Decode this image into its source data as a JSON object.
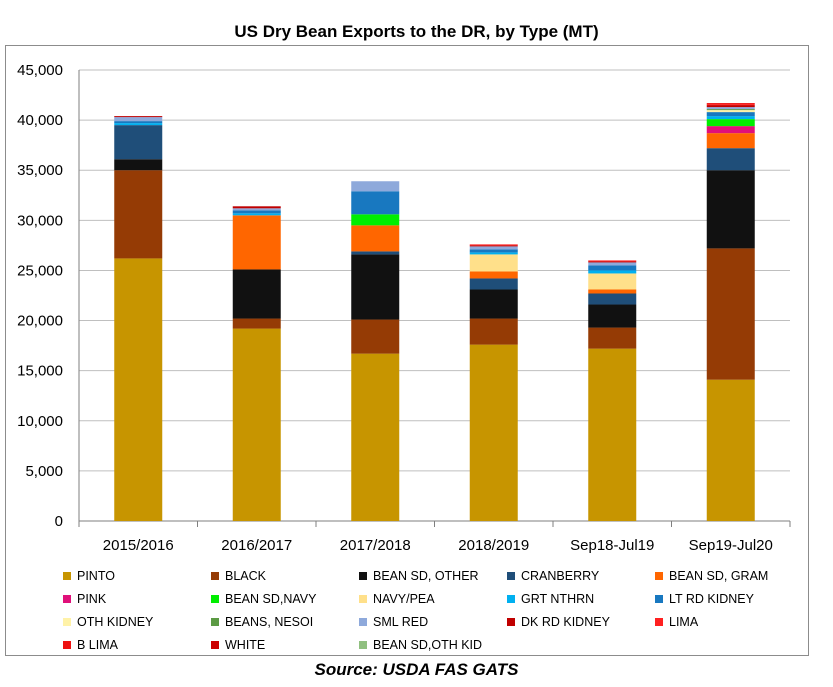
{
  "title": "US Dry Bean Exports to the DR, by Type (MT)",
  "source": "Source: USDA FAS GATS",
  "chart_data": {
    "type": "bar",
    "stacked": true,
    "title": "US Dry Bean Exports to the DR, by Type (MT)",
    "xlabel": "",
    "ylabel": "",
    "ylim": [
      0,
      45000
    ],
    "yticks": [
      0,
      5000,
      10000,
      15000,
      20000,
      25000,
      30000,
      35000,
      40000,
      45000
    ],
    "ytick_labels": [
      "0",
      "5,000",
      "10,000",
      "15,000",
      "20,000",
      "25,000",
      "30,000",
      "35,000",
      "40,000",
      "45,000"
    ],
    "grid": true,
    "legend_position": "bottom",
    "categories": [
      "2015/2016",
      "2016/2017",
      "2017/2018",
      "2018/2019",
      "Sep18-Jul19",
      "Sep19-Jul20"
    ],
    "series": [
      {
        "name": "PINTO",
        "color": "#c79500",
        "values": [
          26200,
          19200,
          16700,
          17600,
          17200,
          14100
        ]
      },
      {
        "name": "BLACK",
        "color": "#953b05",
        "values": [
          8800,
          1000,
          3400,
          2600,
          2100,
          13100
        ]
      },
      {
        "name": "BEAN SD, OTHER",
        "color": "#111111",
        "values": [
          1100,
          4900,
          6500,
          2900,
          2300,
          7800
        ]
      },
      {
        "name": "CRANBERRY",
        "color": "#1f4e79",
        "values": [
          3400,
          0,
          300,
          1100,
          1100,
          2200
        ]
      },
      {
        "name": "BEAN SD, GRAM",
        "color": "#ff6600",
        "values": [
          0,
          5400,
          2600,
          700,
          400,
          1500
        ]
      },
      {
        "name": "PINK",
        "color": "#e0107a",
        "values": [
          0,
          0,
          0,
          0,
          0,
          700
        ]
      },
      {
        "name": "BEAN SD,NAVY",
        "color": "#00ee00",
        "values": [
          0,
          0,
          1100,
          0,
          0,
          700
        ]
      },
      {
        "name": "NAVY/PEA",
        "color": "#ffe08a",
        "values": [
          0,
          0,
          0,
          1700,
          1600,
          0
        ]
      },
      {
        "name": "GRT NTHRN",
        "color": "#00b0f0",
        "values": [
          200,
          200,
          0,
          200,
          300,
          300
        ]
      },
      {
        "name": "LT RD KIDNEY",
        "color": "#1878c0",
        "values": [
          200,
          300,
          2300,
          300,
          500,
          400
        ]
      },
      {
        "name": "OTH KIDNEY",
        "color": "#fff2a8",
        "values": [
          0,
          0,
          0,
          0,
          0,
          200
        ]
      },
      {
        "name": "BEANS, NESOI",
        "color": "#5b9a44",
        "values": [
          0,
          0,
          0,
          0,
          0,
          100
        ]
      },
      {
        "name": "SML RED",
        "color": "#8ea9db",
        "values": [
          400,
          200,
          1000,
          300,
          300,
          200
        ]
      },
      {
        "name": "DK RD KIDNEY",
        "color": "#c00000",
        "values": [
          100,
          200,
          0,
          100,
          100,
          200
        ]
      },
      {
        "name": "LIMA",
        "color": "#ff2020",
        "values": [
          0,
          0,
          0,
          100,
          100,
          100
        ]
      },
      {
        "name": "B LIMA",
        "color": "#ee1111",
        "values": [
          0,
          0,
          0,
          0,
          0,
          100
        ]
      },
      {
        "name": "WHITE",
        "color": "#cc0000",
        "values": [
          0,
          0,
          0,
          0,
          0,
          0
        ]
      },
      {
        "name": "BEAN SD,OTH KID",
        "color": "#90c080",
        "values": [
          0,
          0,
          0,
          0,
          0,
          0
        ]
      }
    ]
  }
}
